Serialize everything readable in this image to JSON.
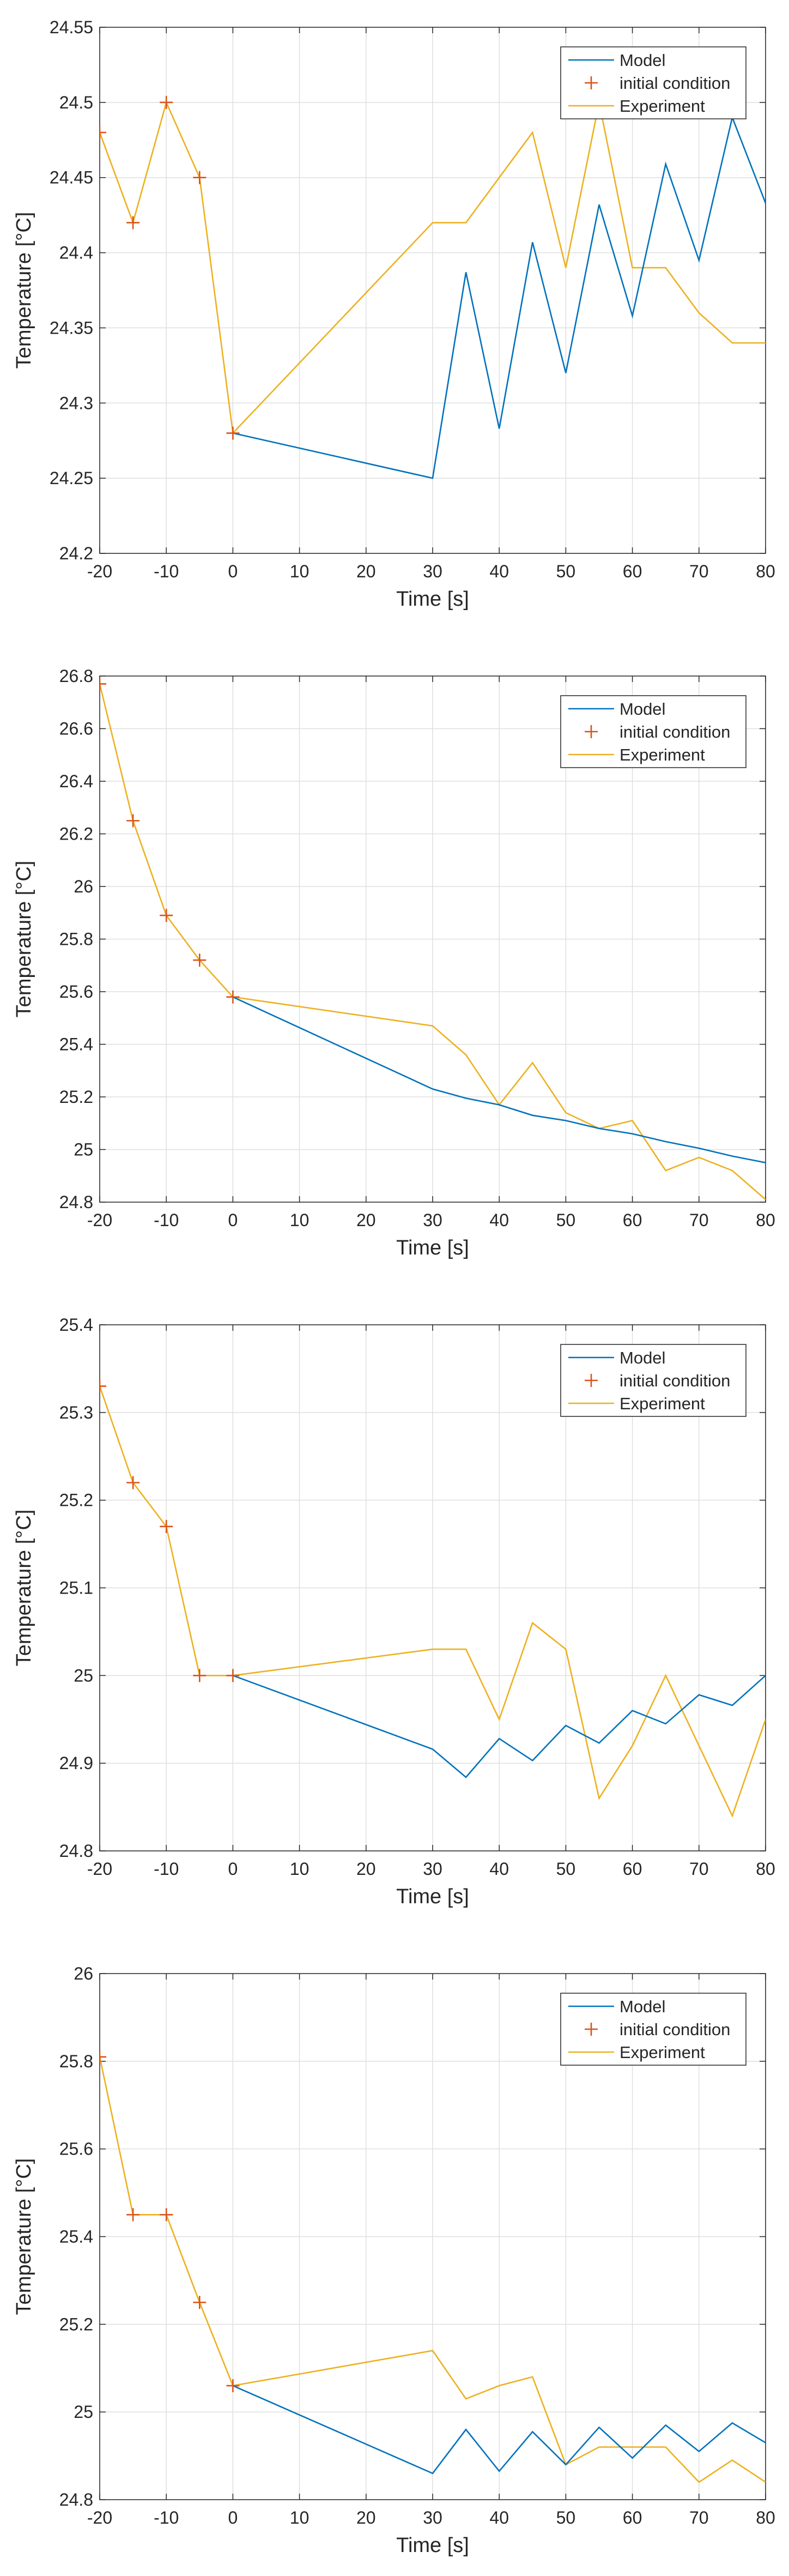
{
  "colors": {
    "model": "#0072BD",
    "initial": "#D95319",
    "experiment": "#EDB120",
    "grid": "#DFDFDF",
    "axis": "#262626"
  },
  "chart_data": [
    {
      "type": "line",
      "xlabel": "Time [s]",
      "ylabel": "Temperature [°C]",
      "xlim": [
        -20,
        80
      ],
      "ylim": [
        24.2,
        24.55
      ],
      "xticks": [
        -20,
        -10,
        0,
        10,
        20,
        30,
        40,
        50,
        60,
        70,
        80
      ],
      "xtick_labels": [
        "-20",
        "-10",
        "0",
        "10",
        "20",
        "30",
        "40",
        "50",
        "60",
        "70",
        "80"
      ],
      "yticks": [
        24.2,
        24.25,
        24.3,
        24.35,
        24.4,
        24.45,
        24.5,
        24.55
      ],
      "ytick_labels": [
        "24.2",
        "24.25",
        "24.3",
        "24.35",
        "24.4",
        "24.45",
        "24.5",
        "24.55"
      ],
      "grid": true,
      "legend": {
        "position": "top-right",
        "entries": [
          "Model",
          "initial condition",
          "Experiment"
        ]
      },
      "series": [
        {
          "name": "Model",
          "style": "line",
          "x": [
            0,
            30,
            35,
            40,
            45,
            50,
            55,
            60,
            65,
            70,
            75,
            80
          ],
          "y": [
            24.28,
            24.25,
            24.387,
            24.283,
            24.407,
            24.32,
            24.432,
            24.358,
            24.459,
            24.395,
            24.49,
            24.433
          ]
        },
        {
          "name": "initial condition",
          "style": "marker",
          "x": [
            -20,
            -15,
            -10,
            -5,
            0
          ],
          "y": [
            24.48,
            24.42,
            24.5,
            24.45,
            24.28
          ]
        },
        {
          "name": "Experiment",
          "style": "line",
          "x": [
            -20,
            -15,
            -10,
            -5,
            0,
            30,
            35,
            40,
            45,
            50,
            55,
            60,
            65,
            70,
            75,
            80
          ],
          "y": [
            24.48,
            24.42,
            24.5,
            24.45,
            24.28,
            24.42,
            24.42,
            24.45,
            24.48,
            24.39,
            24.5,
            24.39,
            24.39,
            24.36,
            24.34,
            24.34
          ]
        }
      ]
    },
    {
      "type": "line",
      "xlabel": "Time [s]",
      "ylabel": "Temperature [°C]",
      "xlim": [
        -20,
        80
      ],
      "ylim": [
        24.8,
        26.8
      ],
      "xticks": [
        -20,
        -10,
        0,
        10,
        20,
        30,
        40,
        50,
        60,
        70,
        80
      ],
      "xtick_labels": [
        "-20",
        "-10",
        "0",
        "10",
        "20",
        "30",
        "40",
        "50",
        "60",
        "70",
        "80"
      ],
      "yticks": [
        24.8,
        25,
        25.2,
        25.4,
        25.6,
        25.8,
        26,
        26.2,
        26.4,
        26.6,
        26.8
      ],
      "ytick_labels": [
        "24.8",
        "25",
        "25.2",
        "25.4",
        "25.6",
        "25.8",
        "26",
        "26.2",
        "26.4",
        "26.6",
        "26.8"
      ],
      "grid": true,
      "legend": {
        "position": "top-right",
        "entries": [
          "Model",
          "initial condition",
          "Experiment"
        ]
      },
      "series": [
        {
          "name": "Model",
          "style": "line",
          "x": [
            0,
            30,
            35,
            40,
            45,
            50,
            55,
            60,
            65,
            70,
            75,
            80
          ],
          "y": [
            25.58,
            25.23,
            25.195,
            25.17,
            25.13,
            25.11,
            25.08,
            25.06,
            25.03,
            25.005,
            24.975,
            24.95
          ]
        },
        {
          "name": "initial condition",
          "style": "marker",
          "x": [
            -20,
            -15,
            -10,
            -5,
            0
          ],
          "y": [
            26.77,
            26.25,
            25.89,
            25.72,
            25.58
          ]
        },
        {
          "name": "Experiment",
          "style": "line",
          "x": [
            -20,
            -15,
            -10,
            -5,
            0,
            30,
            35,
            40,
            45,
            50,
            55,
            60,
            65,
            70,
            75,
            80
          ],
          "y": [
            26.77,
            26.25,
            25.89,
            25.72,
            25.58,
            25.47,
            25.36,
            25.17,
            25.33,
            25.14,
            25.08,
            25.11,
            24.92,
            24.97,
            24.92,
            24.81
          ]
        }
      ]
    },
    {
      "type": "line",
      "xlabel": "Time [s]",
      "ylabel": "Temperature [°C]",
      "xlim": [
        -20,
        80
      ],
      "ylim": [
        24.8,
        25.4
      ],
      "xticks": [
        -20,
        -10,
        0,
        10,
        20,
        30,
        40,
        50,
        60,
        70,
        80
      ],
      "xtick_labels": [
        "-20",
        "-10",
        "0",
        "10",
        "20",
        "30",
        "40",
        "50",
        "60",
        "70",
        "80"
      ],
      "yticks": [
        24.8,
        24.9,
        25,
        25.1,
        25.2,
        25.3,
        25.4
      ],
      "ytick_labels": [
        "24.8",
        "24.9",
        "25",
        "25.1",
        "25.2",
        "25.3",
        "25.4"
      ],
      "grid": true,
      "legend": {
        "position": "top-right",
        "entries": [
          "Model",
          "initial condition",
          "Experiment"
        ]
      },
      "series": [
        {
          "name": "Model",
          "style": "line",
          "x": [
            0,
            30,
            35,
            40,
            45,
            50,
            55,
            60,
            65,
            70,
            75,
            80
          ],
          "y": [
            25.0,
            24.916,
            24.884,
            24.928,
            24.903,
            24.943,
            24.923,
            24.96,
            24.945,
            24.978,
            24.966,
            25.0
          ]
        },
        {
          "name": "initial condition",
          "style": "marker",
          "x": [
            -20,
            -15,
            -10,
            -5,
            0
          ],
          "y": [
            25.33,
            25.22,
            25.17,
            25.0,
            25.0
          ]
        },
        {
          "name": "Experiment",
          "style": "line",
          "x": [
            -20,
            -15,
            -10,
            -5,
            0,
            30,
            35,
            40,
            45,
            50,
            55,
            60,
            65,
            70,
            75,
            80
          ],
          "y": [
            25.33,
            25.22,
            25.17,
            25.0,
            25.0,
            25.03,
            25.03,
            24.95,
            25.06,
            25.03,
            24.86,
            24.92,
            25.0,
            24.92,
            24.84,
            24.95
          ]
        }
      ]
    },
    {
      "type": "line",
      "xlabel": "Time [s]",
      "ylabel": "Temperature [°C]",
      "xlim": [
        -20,
        80
      ],
      "ylim": [
        24.8,
        26
      ],
      "xticks": [
        -20,
        -10,
        0,
        10,
        20,
        30,
        40,
        50,
        60,
        70,
        80
      ],
      "xtick_labels": [
        "-20",
        "-10",
        "0",
        "10",
        "20",
        "30",
        "40",
        "50",
        "60",
        "70",
        "80"
      ],
      "yticks": [
        24.8,
        25,
        25.2,
        25.4,
        25.6,
        25.8,
        26
      ],
      "ytick_labels": [
        "24.8",
        "25",
        "25.2",
        "25.4",
        "25.6",
        "25.8",
        "26"
      ],
      "grid": true,
      "legend": {
        "position": "top-right",
        "entries": [
          "Model",
          "initial condition",
          "Experiment"
        ]
      },
      "series": [
        {
          "name": "Model",
          "style": "line",
          "x": [
            0,
            30,
            35,
            40,
            45,
            50,
            55,
            60,
            65,
            70,
            75,
            80
          ],
          "y": [
            25.06,
            24.86,
            24.96,
            24.865,
            24.955,
            24.88,
            24.965,
            24.895,
            24.97,
            24.91,
            24.975,
            24.93
          ]
        },
        {
          "name": "initial condition",
          "style": "marker",
          "x": [
            -20,
            -15,
            -10,
            -5,
            0
          ],
          "y": [
            25.81,
            25.45,
            25.45,
            25.25,
            25.06
          ]
        },
        {
          "name": "Experiment",
          "style": "line",
          "x": [
            -20,
            -15,
            -10,
            -5,
            0,
            30,
            35,
            40,
            45,
            50,
            55,
            60,
            65,
            70,
            75,
            80
          ],
          "y": [
            25.81,
            25.45,
            25.45,
            25.25,
            25.06,
            25.14,
            25.03,
            25.06,
            25.08,
            24.88,
            24.92,
            24.92,
            24.92,
            24.84,
            24.89,
            24.84
          ]
        }
      ]
    }
  ]
}
